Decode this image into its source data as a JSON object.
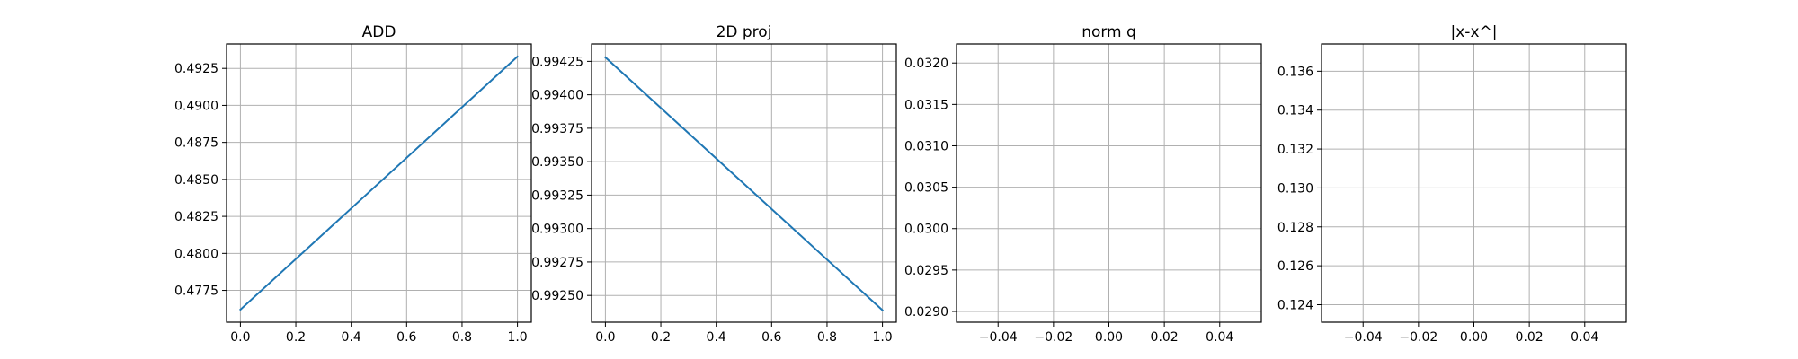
{
  "line_color": "#1f77b4",
  "grid_color": "#b0b0b0",
  "chart_data": [
    {
      "type": "line",
      "title": "ADD",
      "grid": true,
      "xlim": [
        -0.05,
        1.05
      ],
      "ylim": [
        0.47535,
        0.49415
      ],
      "x_ticks": [
        "0.0",
        "0.2",
        "0.4",
        "0.6",
        "0.8",
        "1.0"
      ],
      "y_ticks": [
        "0.4775",
        "0.4800",
        "0.4825",
        "0.4850",
        "0.4875",
        "0.4900",
        "0.4925"
      ],
      "series": [
        {
          "x": [
            0,
            1
          ],
          "y": [
            0.4762,
            0.4933
          ]
        }
      ]
    },
    {
      "type": "line",
      "title": "2D proj",
      "grid": true,
      "xlim": [
        -0.05,
        1.05
      ],
      "ylim": [
        0.9923,
        0.99438
      ],
      "x_ticks": [
        "0.0",
        "0.2",
        "0.4",
        "0.6",
        "0.8",
        "1.0"
      ],
      "y_ticks": [
        "0.99250",
        "0.99275",
        "0.99300",
        "0.99325",
        "0.99350",
        "0.99375",
        "0.99400",
        "0.99425"
      ],
      "series": [
        {
          "x": [
            0,
            1
          ],
          "y": [
            0.99428,
            0.99239
          ]
        }
      ]
    },
    {
      "type": "line",
      "title": "norm q",
      "grid": true,
      "xlim": [
        -0.055,
        0.055
      ],
      "ylim": [
        0.02887,
        0.03223
      ],
      "x_ticks": [
        "−0.04",
        "−0.02",
        "0.00",
        "0.02",
        "0.04"
      ],
      "y_ticks": [
        "0.0290",
        "0.0295",
        "0.0300",
        "0.0305",
        "0.0310",
        "0.0315",
        "0.0320"
      ],
      "series": [
        {
          "x": [],
          "y": []
        }
      ]
    },
    {
      "type": "line",
      "title": "|x-x^|",
      "grid": true,
      "xlim": [
        -0.055,
        0.055
      ],
      "ylim": [
        0.1231,
        0.1374
      ],
      "x_ticks": [
        "−0.04",
        "−0.02",
        "0.00",
        "0.02",
        "0.04"
      ],
      "y_ticks": [
        "0.124",
        "0.126",
        "0.128",
        "0.130",
        "0.132",
        "0.134",
        "0.136"
      ],
      "series": [
        {
          "x": [],
          "y": []
        }
      ]
    }
  ]
}
